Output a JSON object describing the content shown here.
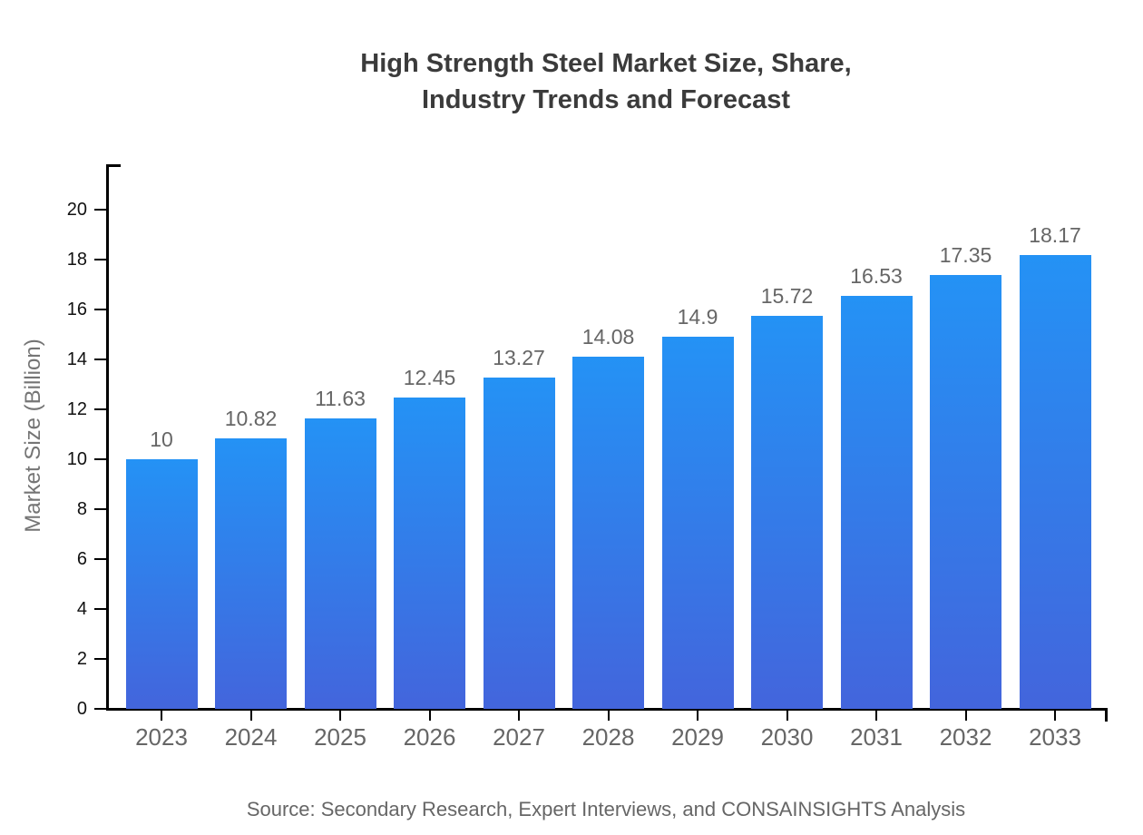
{
  "page": {
    "title_line1": "High Strength Steel Market Size, Share,",
    "title_line2": "Industry Trends and Forecast",
    "source_note": "Source: Secondary Research, Expert Interviews, and CONSAINSIGHTS Analysis"
  },
  "chart_data": {
    "type": "bar",
    "title": "High Strength Steel Market Size, Share, Industry Trends and Forecast",
    "categories": [
      "2023",
      "2024",
      "2025",
      "2026",
      "2027",
      "2028",
      "2029",
      "2030",
      "2031",
      "2032",
      "2033"
    ],
    "values": [
      10,
      10.82,
      11.63,
      12.45,
      13.27,
      14.08,
      14.9,
      15.72,
      16.53,
      17.35,
      18.17
    ],
    "value_labels": [
      "10",
      "10.82",
      "11.63",
      "12.45",
      "13.27",
      "14.08",
      "14.9",
      "15.72",
      "16.53",
      "17.35",
      "18.17"
    ],
    "xlabel": "",
    "ylabel": "Market Size (Billion)",
    "ylim": [
      0,
      20
    ],
    "yticks": [
      0,
      2,
      4,
      6,
      8,
      10,
      12,
      14,
      16,
      18,
      20
    ],
    "grid": false,
    "legend": false,
    "source_note": "Source: Secondary Research, Expert Interviews, and CONSAINSIGHTS Analysis",
    "colors": {
      "bar_gradient_top": "#2492F5",
      "bar_gradient_bottom": "#4365DC",
      "axis": "#000000",
      "title_text": "#3b3b3b",
      "tick_text": "#111111",
      "category_text": "#666666",
      "value_text": "#666666",
      "ylabel_text": "#757575",
      "source_text": "#666666"
    }
  }
}
